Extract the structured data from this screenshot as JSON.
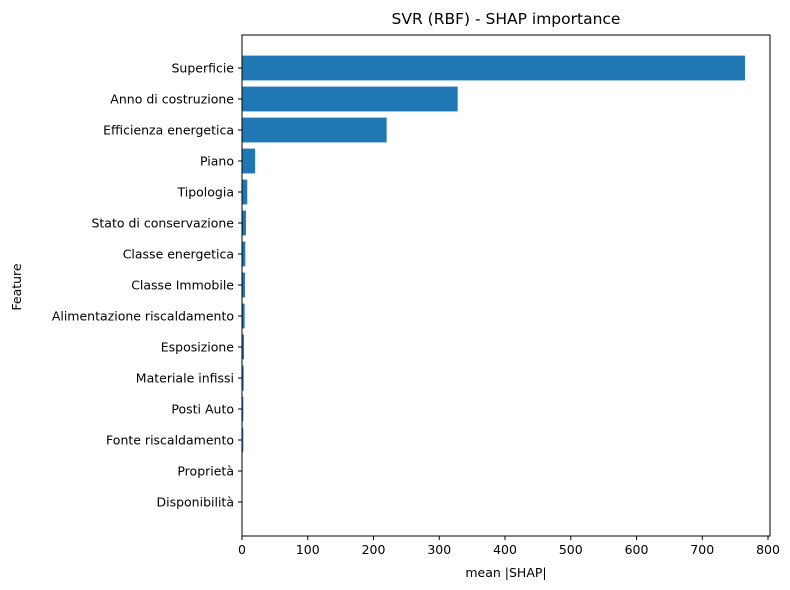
{
  "chart_data": {
    "type": "bar",
    "orientation": "horizontal",
    "title": "SVR (RBF) - SHAP importance",
    "xlabel": "mean |SHAP|",
    "ylabel": "Feature",
    "xlim": [
      0,
      803
    ],
    "xticks": [
      0,
      100,
      200,
      300,
      400,
      500,
      600,
      700,
      800
    ],
    "grid": false,
    "bar_color": "#1f77b4",
    "categories": [
      "Superficie",
      "Anno di costruzione",
      "Efficienza energetica",
      "Piano",
      "Tipologia",
      "Stato di conservazione",
      "Classe energetica",
      "Classe Immobile",
      "Alimentazione riscaldamento",
      "Esposizione",
      "Materiale infissi",
      "Posti Auto",
      "Fonte riscaldamento",
      "Proprietà",
      "Disponibilità"
    ],
    "values": [
      765,
      328,
      220,
      20,
      8,
      6,
      5,
      4.5,
      4,
      3,
      2.5,
      2,
      2,
      0.5,
      0.2
    ]
  }
}
